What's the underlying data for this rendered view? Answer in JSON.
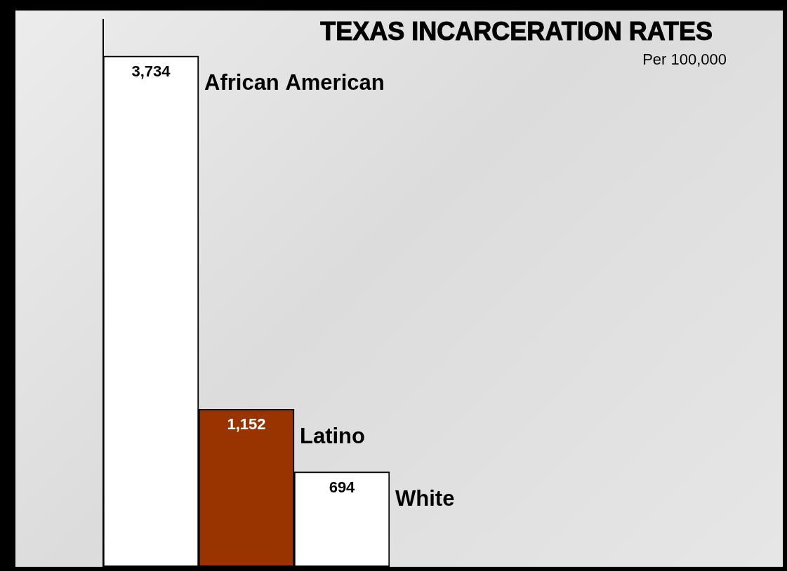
{
  "chart_data": {
    "type": "bar",
    "title": "TEXAS INCARCERATION RATES",
    "subtitle": "Per 100,000",
    "categories": [
      "African American",
      "Latino",
      "White"
    ],
    "values": [
      3734,
      1152,
      694
    ],
    "value_labels": [
      "3,734",
      "1,152",
      "694"
    ],
    "colors": [
      "#ffffff",
      "#993300",
      "#ffffff"
    ],
    "ylim": [
      0,
      4000
    ],
    "grid": false,
    "data_labels": true,
    "tick_labels": false
  }
}
